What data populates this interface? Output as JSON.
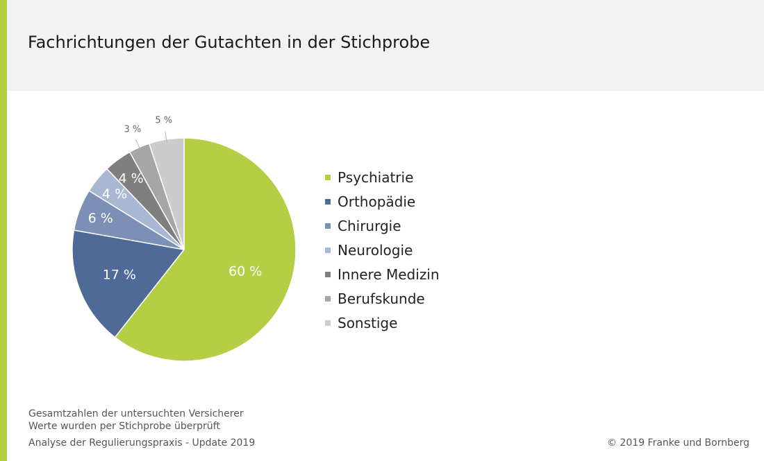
{
  "header": {
    "title": "Fachrichtungen der Gutachten in der Stichprobe"
  },
  "footer": {
    "note_line1": "Gesamtzahlen der untersuchten Versicherer",
    "note_line2": "Werte wurden per Stichprobe überprüft",
    "source": "Analyse der Regulierungspraxis - Update 2019",
    "copyright": "© 2019 Franke und Bornberg"
  },
  "colors": {
    "accent": "#b5cf45",
    "header_bg": "#f2f2f2"
  },
  "chart_data": {
    "type": "pie",
    "title": "Fachrichtungen der Gutachten in der Stichprobe",
    "legend_placement": "right",
    "slices": [
      {
        "label": "Psychiatrie",
        "value": 60,
        "display": "60 %",
        "color": "#b5cf45"
      },
      {
        "label": "Orthopädie",
        "value": 17,
        "display": "17 %",
        "color": "#4f6a96"
      },
      {
        "label": "Chirurgie",
        "value": 6,
        "display": "6 %",
        "color": "#7b90b4"
      },
      {
        "label": "Neurologie",
        "value": 4,
        "display": "4 %",
        "color": "#a8b8d2"
      },
      {
        "label": "Innere Medizin",
        "value": 4,
        "display": "4 %",
        "color": "#7f7f7f"
      },
      {
        "label": "Berufskunde",
        "value": 3,
        "display": "3 %",
        "color": "#a6a6a6"
      },
      {
        "label": "Sonstige",
        "value": 5,
        "display": "5 %",
        "color": "#cccccc"
      }
    ]
  }
}
